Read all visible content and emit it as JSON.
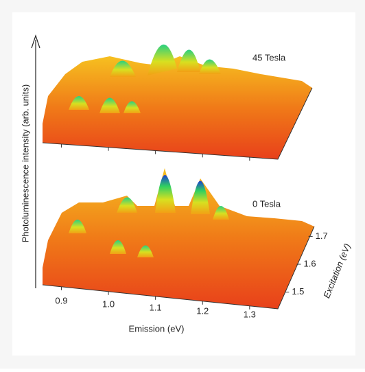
{
  "chart_data": {
    "type": "surface3d",
    "annotations": [
      "45 Tesla",
      "0 Tesla"
    ],
    "xlabel": "Emission (eV)",
    "ylabel": "Photoluminescence intensity (arb. units)",
    "zlabel": "Excitation (eV)",
    "xlim": [
      0.86,
      1.36
    ],
    "xticks": [
      0.9,
      {
        "value": 1,
        "label": "1.0"
      },
      1.1,
      1.2,
      1.3
    ],
    "zlim": [
      1.44,
      1.76
    ],
    "zticks": [
      1.5,
      1.6,
      1.7
    ]
  }
}
